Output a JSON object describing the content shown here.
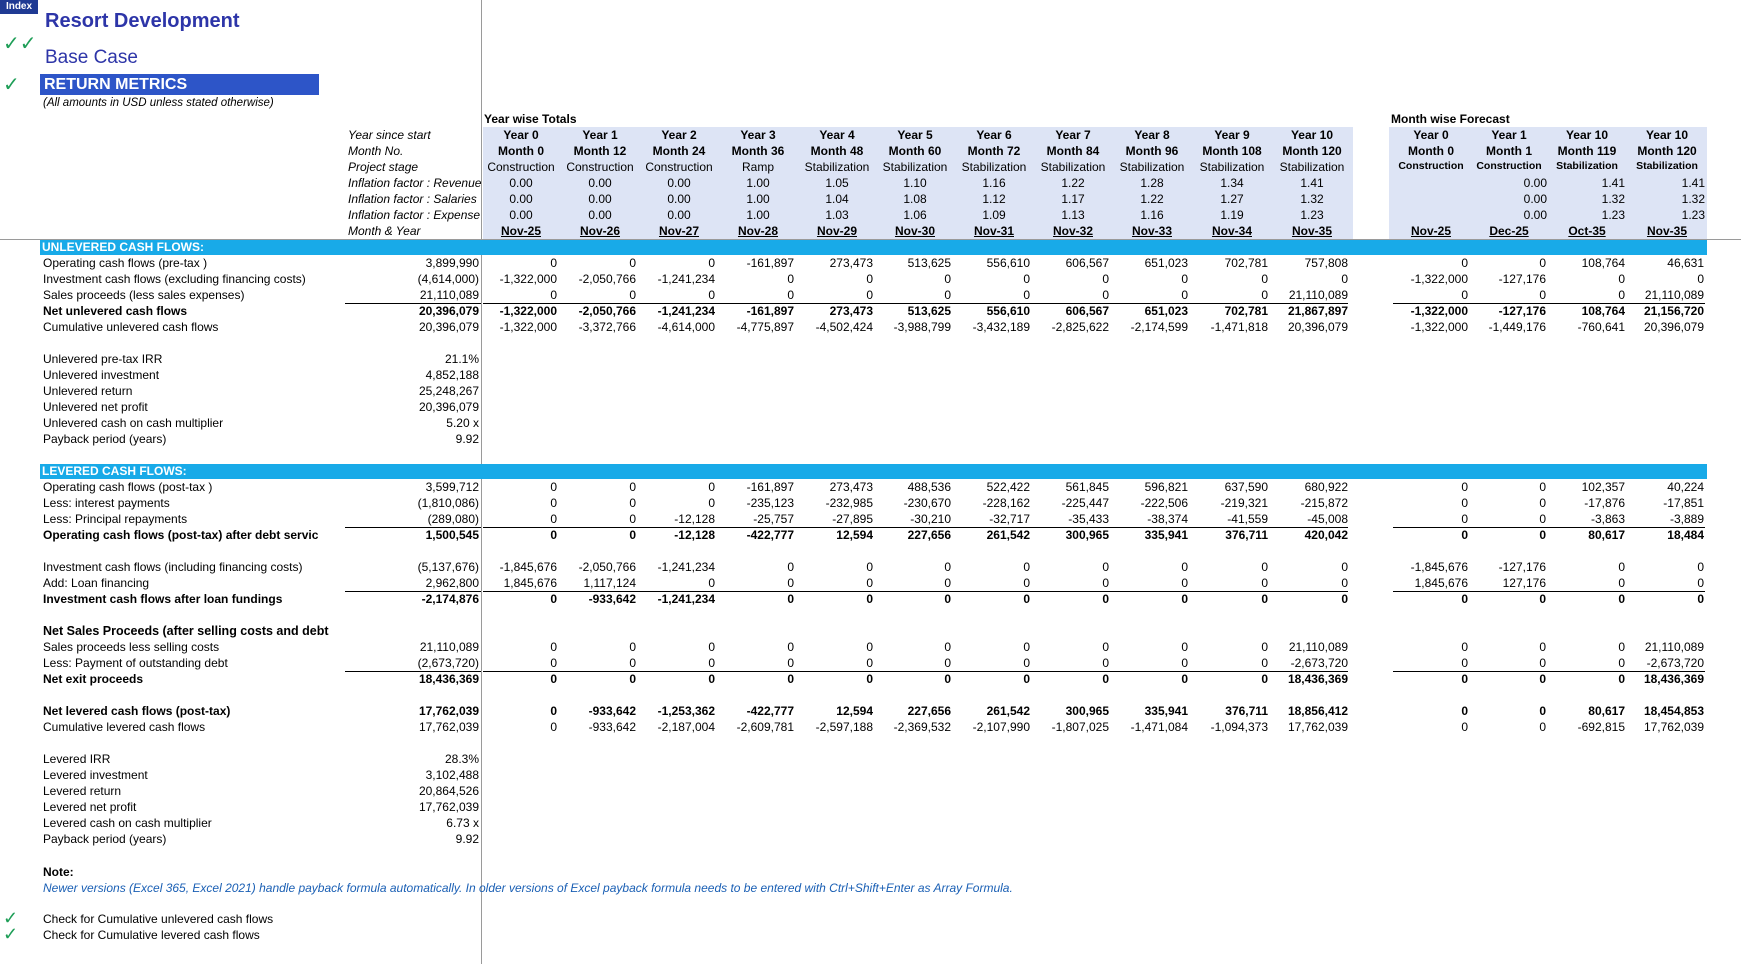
{
  "index_label": "Index",
  "title": "Resort Development",
  "subtitle": "Base Case",
  "section": "RETURN METRICS",
  "units_note": "(All amounts in USD unless stated otherwise)",
  "check_marks": {
    "double": "✓✓",
    "single": "✓"
  },
  "year_wise_label": "Year wise Totals",
  "month_wise_label": "Month wise Forecast",
  "header_labels": [
    "Year since start",
    "Month No.",
    "Project stage",
    "Inflation factor : Revenue",
    "Inflation factor : Salaries",
    "Inflation factor : Expense",
    "Month & Year"
  ],
  "year_cols": [
    {
      "year": "Year 0",
      "month": "Month 0",
      "stage": "Construction",
      "rev": "0.00",
      "sal": "0.00",
      "exp": "0.00",
      "date": "Nov-25"
    },
    {
      "year": "Year 1",
      "month": "Month 12",
      "stage": "Construction",
      "rev": "0.00",
      "sal": "0.00",
      "exp": "0.00",
      "date": "Nov-26"
    },
    {
      "year": "Year 2",
      "month": "Month 24",
      "stage": "Construction",
      "rev": "0.00",
      "sal": "0.00",
      "exp": "0.00",
      "date": "Nov-27"
    },
    {
      "year": "Year 3",
      "month": "Month 36",
      "stage": "Ramp",
      "rev": "1.00",
      "sal": "1.00",
      "exp": "1.00",
      "date": "Nov-28"
    },
    {
      "year": "Year 4",
      "month": "Month 48",
      "stage": "Stabilization",
      "rev": "1.05",
      "sal": "1.04",
      "exp": "1.03",
      "date": "Nov-29"
    },
    {
      "year": "Year 5",
      "month": "Month 60",
      "stage": "Stabilization",
      "rev": "1.10",
      "sal": "1.08",
      "exp": "1.06",
      "date": "Nov-30"
    },
    {
      "year": "Year 6",
      "month": "Month 72",
      "stage": "Stabilization",
      "rev": "1.16",
      "sal": "1.12",
      "exp": "1.09",
      "date": "Nov-31"
    },
    {
      "year": "Year 7",
      "month": "Month 84",
      "stage": "Stabilization",
      "rev": "1.22",
      "sal": "1.17",
      "exp": "1.13",
      "date": "Nov-32"
    },
    {
      "year": "Year 8",
      "month": "Month 96",
      "stage": "Stabilization",
      "rev": "1.28",
      "sal": "1.22",
      "exp": "1.16",
      "date": "Nov-33"
    },
    {
      "year": "Year 9",
      "month": "Month 108",
      "stage": "Stabilization",
      "rev": "1.34",
      "sal": "1.27",
      "exp": "1.19",
      "date": "Nov-34"
    },
    {
      "year": "Year 10",
      "month": "Month 120",
      "stage": "Stabilization",
      "rev": "1.41",
      "sal": "1.32",
      "exp": "1.23",
      "date": "Nov-35"
    }
  ],
  "month_cols": [
    {
      "year": "Year 0",
      "month": "Month 0",
      "stage": "Construction",
      "rev": "",
      "sal": "",
      "exp": "",
      "date": "Nov-25"
    },
    {
      "year": "Year 1",
      "month": "Month 1",
      "stage": "Construction",
      "rev": "0.00",
      "sal": "0.00",
      "exp": "0.00",
      "date": "Dec-25"
    },
    {
      "year": "Year 10",
      "month": "Month 119",
      "stage": "Stabilization",
      "rev": "1.41",
      "sal": "1.32",
      "exp": "1.23",
      "date": "Oct-35"
    },
    {
      "year": "Year 10",
      "month": "Month 120",
      "stage": "Stabilization",
      "rev": "1.41",
      "sal": "1.32",
      "exp": "1.23",
      "date": "Nov-35"
    }
  ],
  "unlevered_title": "UNLEVERED CASH FLOWS:",
  "unlevered_rows": [
    {
      "label": "Operating cash flows (pre-tax )",
      "total": "3,899,990",
      "bold": false,
      "rule": false,
      "years": [
        "0",
        "0",
        "0",
        "-161,897",
        "273,473",
        "513,625",
        "556,610",
        "606,567",
        "651,023",
        "702,781",
        "757,808"
      ],
      "months": [
        "0",
        "0",
        "108,764",
        "46,631"
      ]
    },
    {
      "label": "Investment cash flows  (excluding financing costs)",
      "total": "(4,614,000)",
      "bold": false,
      "rule": false,
      "years": [
        "-1,322,000",
        "-2,050,766",
        "-1,241,234",
        "0",
        "0",
        "0",
        "0",
        "0",
        "0",
        "0",
        "0"
      ],
      "months": [
        "-1,322,000",
        "-127,176",
        "0",
        "0"
      ]
    },
    {
      "label": "Sales proceeds (less sales expenses)",
      "total": "21,110,089",
      "bold": false,
      "rule": false,
      "years": [
        "0",
        "0",
        "0",
        "0",
        "0",
        "0",
        "0",
        "0",
        "0",
        "0",
        "21,110,089"
      ],
      "months": [
        "0",
        "0",
        "0",
        "21,110,089"
      ]
    },
    {
      "label": "Net unlevered cash flows",
      "total": "20,396,079",
      "bold": true,
      "rule": true,
      "years": [
        "-1,322,000",
        "-2,050,766",
        "-1,241,234",
        "-161,897",
        "273,473",
        "513,625",
        "556,610",
        "606,567",
        "651,023",
        "702,781",
        "21,867,897"
      ],
      "months": [
        "-1,322,000",
        "-127,176",
        "108,764",
        "21,156,720"
      ]
    },
    {
      "label": "Cumulative unlevered cash flows",
      "total": "20,396,079",
      "bold": false,
      "rule": false,
      "years": [
        "-1,322,000",
        "-3,372,766",
        "-4,614,000",
        "-4,775,897",
        "-4,502,424",
        "-3,988,799",
        "-3,432,189",
        "-2,825,622",
        "-2,174,599",
        "-1,471,818",
        "20,396,079"
      ],
      "months": [
        "-1,322,000",
        "-1,449,176",
        "-760,641",
        "20,396,079"
      ]
    }
  ],
  "unlevered_metrics": [
    {
      "label": "Unlevered pre-tax IRR",
      "value": "21.1%"
    },
    {
      "label": "Unlevered investment",
      "value": "4,852,188"
    },
    {
      "label": "Unlevered return",
      "value": "25,248,267"
    },
    {
      "label": "Unlevered net profit",
      "value": "20,396,079"
    },
    {
      "label": "Unlevered cash on cash multiplier",
      "value": "5.20 x"
    },
    {
      "label": "Payback period (years)",
      "value": "9.92"
    }
  ],
  "levered_title": "LEVERED CASH FLOWS:",
  "levered_block1": [
    {
      "label": "Operating cash flows (post-tax )",
      "total": "3,599,712",
      "bold": false,
      "rule": false,
      "years": [
        "0",
        "0",
        "0",
        "-161,897",
        "273,473",
        "488,536",
        "522,422",
        "561,845",
        "596,821",
        "637,590",
        "680,922"
      ],
      "months": [
        "0",
        "0",
        "102,357",
        "40,224"
      ]
    },
    {
      "label": "Less: interest payments",
      "total": "(1,810,086)",
      "bold": false,
      "rule": false,
      "years": [
        "0",
        "0",
        "0",
        "-235,123",
        "-232,985",
        "-230,670",
        "-228,162",
        "-225,447",
        "-222,506",
        "-219,321",
        "-215,872"
      ],
      "months": [
        "0",
        "0",
        "-17,876",
        "-17,851"
      ]
    },
    {
      "label": "Less: Principal repayments",
      "total": "(289,080)",
      "bold": false,
      "rule": false,
      "years": [
        "0",
        "0",
        "-12,128",
        "-25,757",
        "-27,895",
        "-30,210",
        "-32,717",
        "-35,433",
        "-38,374",
        "-41,559",
        "-45,008"
      ],
      "months": [
        "0",
        "0",
        "-3,863",
        "-3,889"
      ]
    },
    {
      "label": "Operating cash flows (post-tax) after debt servic",
      "total": "1,500,545",
      "bold": true,
      "rule": true,
      "years": [
        "0",
        "0",
        "-12,128",
        "-422,777",
        "12,594",
        "227,656",
        "261,542",
        "300,965",
        "335,941",
        "376,711",
        "420,042"
      ],
      "months": [
        "0",
        "0",
        "80,617",
        "18,484"
      ]
    }
  ],
  "levered_block2": [
    {
      "label": "Investment cash flows (including financing costs)",
      "total": "(5,137,676)",
      "bold": false,
      "rule": false,
      "years": [
        "-1,845,676",
        "-2,050,766",
        "-1,241,234",
        "0",
        "0",
        "0",
        "0",
        "0",
        "0",
        "0",
        "0"
      ],
      "months": [
        "-1,845,676",
        "-127,176",
        "0",
        "0"
      ]
    },
    {
      "label": "Add: Loan financing",
      "total": "2,962,800",
      "bold": false,
      "rule": false,
      "years": [
        "1,845,676",
        "1,117,124",
        "0",
        "0",
        "0",
        "0",
        "0",
        "0",
        "0",
        "0",
        "0"
      ],
      "months": [
        "1,845,676",
        "127,176",
        "0",
        "0"
      ]
    },
    {
      "label": "Investment cash flows after loan fundings",
      "total": "-2,174,876",
      "bold": true,
      "rule": true,
      "years": [
        "0",
        "-933,642",
        "-1,241,234",
        "0",
        "0",
        "0",
        "0",
        "0",
        "0",
        "0",
        "0"
      ],
      "months": [
        "0",
        "0",
        "0",
        "0"
      ]
    }
  ],
  "net_sales_title": "Net Sales Proceeds (after selling costs and debt",
  "levered_block3": [
    {
      "label": "Sales proceeds less selling costs",
      "total": "21,110,089",
      "bold": false,
      "rule": false,
      "years": [
        "0",
        "0",
        "0",
        "0",
        "0",
        "0",
        "0",
        "0",
        "0",
        "0",
        "21,110,089"
      ],
      "months": [
        "0",
        "0",
        "0",
        "21,110,089"
      ]
    },
    {
      "label": "Less: Payment of outstanding debt",
      "total": "(2,673,720)",
      "bold": false,
      "rule": false,
      "years": [
        "0",
        "0",
        "0",
        "0",
        "0",
        "0",
        "0",
        "0",
        "0",
        "0",
        "-2,673,720"
      ],
      "months": [
        "0",
        "0",
        "0",
        "-2,673,720"
      ]
    },
    {
      "label": "Net exit proceeds",
      "total": "18,436,369",
      "bold": true,
      "rule": true,
      "years": [
        "0",
        "0",
        "0",
        "0",
        "0",
        "0",
        "0",
        "0",
        "0",
        "0",
        "18,436,369"
      ],
      "months": [
        "0",
        "0",
        "0",
        "18,436,369"
      ]
    }
  ],
  "levered_block4": [
    {
      "label": "Net levered cash flows (post-tax)",
      "total": "17,762,039",
      "bold": true,
      "rule": false,
      "years": [
        "0",
        "-933,642",
        "-1,253,362",
        "-422,777",
        "12,594",
        "227,656",
        "261,542",
        "300,965",
        "335,941",
        "376,711",
        "18,856,412"
      ],
      "months": [
        "0",
        "0",
        "80,617",
        "18,454,853"
      ]
    },
    {
      "label": "Cumulative levered cash flows",
      "total": "17,762,039",
      "bold": false,
      "rule": false,
      "years": [
        "0",
        "-933,642",
        "-2,187,004",
        "-2,609,781",
        "-2,597,188",
        "-2,369,532",
        "-2,107,990",
        "-1,807,025",
        "-1,471,084",
        "-1,094,373",
        "17,762,039"
      ],
      "months": [
        "0",
        "0",
        "-692,815",
        "17,762,039"
      ]
    }
  ],
  "levered_metrics": [
    {
      "label": "Levered IRR",
      "value": "28.3%"
    },
    {
      "label": "Levered investment",
      "value": "3,102,488"
    },
    {
      "label": "Levered return",
      "value": "20,864,526"
    },
    {
      "label": "Levered net profit",
      "value": "17,762,039"
    },
    {
      "label": "Levered cash on cash multiplier",
      "value": "6.73 x"
    },
    {
      "label": "Payback period (years)",
      "value": "9.92"
    }
  ],
  "note_title": "Note:",
  "note_text": "Newer versions (Excel 365, Excel 2021) handle payback formula automatically. In older versions of Excel payback formula needs to be entered with Ctrl+Shift+Enter as Array Formula.",
  "checks": [
    "Check for Cumulative unlevered cash flows",
    "Check for Cumulative levered cash flows"
  ],
  "colors": {
    "title": "#2d35a8",
    "bar": "#18aae8",
    "shade": "#dde4f5",
    "check": "#1e9e57",
    "note": "#1a5fb4"
  }
}
